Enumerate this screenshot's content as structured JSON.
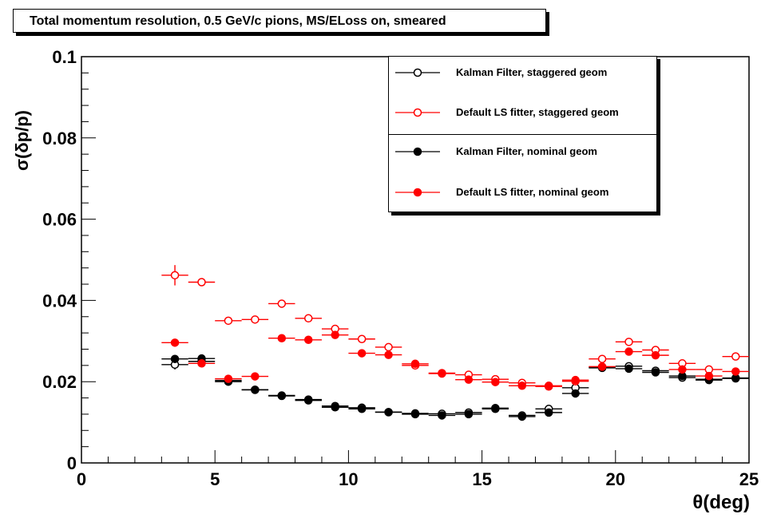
{
  "chart_data": {
    "type": "scatter",
    "title": "Total momentum resolution, 0.5 GeV/c pions, MS/ELoss on, smeared",
    "xlabel": "θ(deg)",
    "ylabel": "σ(δp/p)",
    "xlim": [
      0,
      25
    ],
    "ylim": [
      0,
      0.1
    ],
    "x_ticks": [
      "0",
      "5",
      "10",
      "15",
      "20",
      "25"
    ],
    "y_ticks": [
      "0",
      "0.02",
      "0.04",
      "0.06",
      "0.08",
      "0.1"
    ],
    "x_bin_half_width": 0.5,
    "legend_position": "top-right",
    "series": [
      {
        "name": "Kalman Filter, staggered geom",
        "color": "#000000",
        "marker": "open-circle",
        "x": [
          3.5,
          4.5,
          5.5,
          6.5,
          7.5,
          8.5,
          9.5,
          10.5,
          11.5,
          12.5,
          13.5,
          14.5,
          15.5,
          16.5,
          17.5,
          18.5,
          19.5,
          20.5,
          21.5,
          22.5,
          23.5,
          24.5
        ],
        "y": [
          0.0242,
          0.025,
          0.0203,
          0.018,
          0.0166,
          0.0156,
          0.014,
          0.0136,
          0.0125,
          0.0122,
          0.0121,
          0.0124,
          0.0135,
          0.0117,
          0.0133,
          0.0185,
          0.0234,
          0.0238,
          0.0227,
          0.021,
          0.0204,
          0.0208
        ]
      },
      {
        "name": "Default LS fitter, staggered geom",
        "color": "#ff0000",
        "marker": "open-circle",
        "x": [
          3.5,
          4.5,
          5.5,
          6.5,
          7.5,
          8.5,
          9.5,
          10.5,
          11.5,
          12.5,
          13.5,
          14.5,
          15.5,
          16.5,
          17.5,
          18.5,
          19.5,
          20.5,
          21.5,
          22.5,
          23.5,
          24.5
        ],
        "y": [
          0.0462,
          0.0445,
          0.035,
          0.0353,
          0.0392,
          0.0356,
          0.033,
          0.0305,
          0.0285,
          0.024,
          0.022,
          0.0217,
          0.0206,
          0.0197,
          0.019,
          0.0201,
          0.0256,
          0.0298,
          0.0278,
          0.0245,
          0.023,
          0.0262
        ]
      },
      {
        "name": "Kalman Filter, nominal geom",
        "color": "#000000",
        "marker": "filled-circle",
        "x": [
          3.5,
          4.5,
          5.5,
          6.5,
          7.5,
          8.5,
          9.5,
          10.5,
          11.5,
          12.5,
          13.5,
          14.5,
          15.5,
          16.5,
          17.5,
          18.5,
          19.5,
          20.5,
          21.5,
          22.5,
          23.5,
          24.5
        ],
        "y": [
          0.0256,
          0.0257,
          0.02,
          0.018,
          0.0165,
          0.0154,
          0.0137,
          0.0133,
          0.0125,
          0.012,
          0.0117,
          0.012,
          0.0133,
          0.0114,
          0.0124,
          0.0171,
          0.0236,
          0.0232,
          0.0223,
          0.0214,
          0.0206,
          0.0209
        ]
      },
      {
        "name": "Default LS fitter, nominal geom",
        "color": "#ff0000",
        "marker": "filled-circle",
        "x": [
          3.5,
          4.5,
          5.5,
          6.5,
          7.5,
          8.5,
          9.5,
          10.5,
          11.5,
          12.5,
          13.5,
          14.5,
          15.5,
          16.5,
          17.5,
          18.5,
          19.5,
          20.5,
          21.5,
          22.5,
          23.5,
          24.5
        ],
        "y": [
          0.0296,
          0.0245,
          0.0207,
          0.0213,
          0.0307,
          0.0303,
          0.0315,
          0.027,
          0.0266,
          0.0244,
          0.0221,
          0.0205,
          0.0199,
          0.019,
          0.0188,
          0.0204,
          0.0237,
          0.0274,
          0.0265,
          0.023,
          0.0214,
          0.0225
        ]
      }
    ],
    "y_error": {
      "Kalman Filter, staggered geom": [
        0.0012,
        0.0006,
        0.0004,
        0.0003,
        0.0003,
        0.0003,
        0.0002,
        0.0002,
        0.0002,
        0.0002,
        0.0002,
        0.0002,
        0.0002,
        0.0002,
        0.0004,
        0.0015,
        0.0004,
        0.0003,
        0.0003,
        0.0003,
        0.0003,
        0.0003
      ],
      "Default LS fitter, staggered geom": [
        0.0025,
        0.0008,
        0.0006,
        0.0005,
        0.0006,
        0.0005,
        0.0006,
        0.0005,
        0.0005,
        0.0005,
        0.0004,
        0.0004,
        0.0004,
        0.0004,
        0.0004,
        0.0006,
        0.0006,
        0.0006,
        0.0006,
        0.0005,
        0.0005,
        0.0005
      ],
      "Kalman Filter, nominal geom": [
        0.0006,
        0.0004,
        0.0004,
        0.0003,
        0.0003,
        0.0003,
        0.0002,
        0.0002,
        0.0002,
        0.0002,
        0.0002,
        0.0002,
        0.0002,
        0.0002,
        0.0002,
        0.0008,
        0.0004,
        0.0003,
        0.0003,
        0.0003,
        0.0003,
        0.0003
      ],
      "Default LS fitter, nominal geom": [
        0.0008,
        0.0005,
        0.0004,
        0.0004,
        0.0004,
        0.0004,
        0.0005,
        0.0004,
        0.0004,
        0.0004,
        0.0004,
        0.0004,
        0.0004,
        0.0004,
        0.0004,
        0.0005,
        0.0005,
        0.0006,
        0.0005,
        0.0005,
        0.0004,
        0.0005
      ]
    }
  }
}
